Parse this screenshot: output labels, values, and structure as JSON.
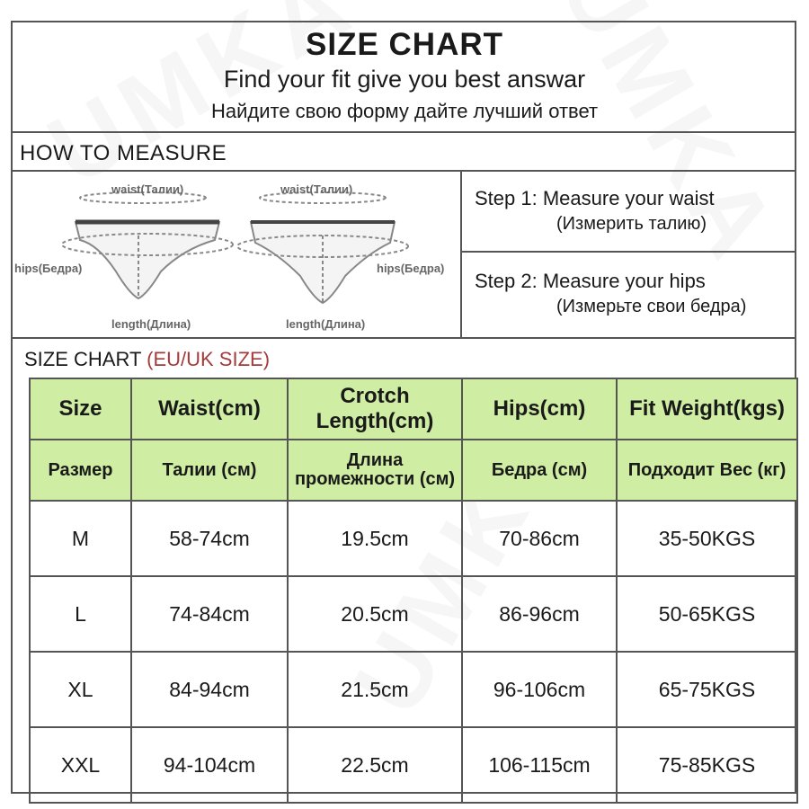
{
  "header": {
    "title": "SIZE CHART",
    "subtitle_en": "Find your fit give you best answar",
    "subtitle_ru": "Найдите свою форму дайте лучший ответ"
  },
  "how_to_measure": {
    "heading": "HOW TO MEASURE",
    "diagram_labels": {
      "waist": "waist(Талии)",
      "hips": "hips(Бедра)",
      "length": "length(Длина)"
    },
    "steps": [
      {
        "en": "Step 1: Measure your waist",
        "ru": "(Измерить талию)"
      },
      {
        "en": "Step 2: Measure your hips",
        "ru": "(Измерьте свои бедра)"
      }
    ]
  },
  "size_chart": {
    "label": "SIZE CHART",
    "label_region": "(EU/UK SIZE)",
    "headers_en": [
      "Size",
      "Waist(cm)",
      "Crotch Length(cm)",
      "Hips(cm)",
      "Fit Weight(kgs)"
    ],
    "headers_ru": [
      "Размер",
      "Талии (см)",
      "Длина промежности (см)",
      "Бедра (см)",
      "Подходит Вес (кг)"
    ],
    "rows": [
      [
        "M",
        "58-74cm",
        "19.5cm",
        "70-86cm",
        "35-50KGS"
      ],
      [
        "L",
        "74-84cm",
        "20.5cm",
        "86-96cm",
        "50-65KGS"
      ],
      [
        "XL",
        "84-94cm",
        "21.5cm",
        "96-106cm",
        "65-75KGS"
      ],
      [
        "XXL",
        "94-104cm",
        "22.5cm",
        "106-115cm",
        "75-85KGS"
      ]
    ]
  },
  "watermark": "UMKA",
  "colors": {
    "header_fill": "#cfeea3",
    "border": "#555555",
    "region_text": "#a33b3b"
  }
}
